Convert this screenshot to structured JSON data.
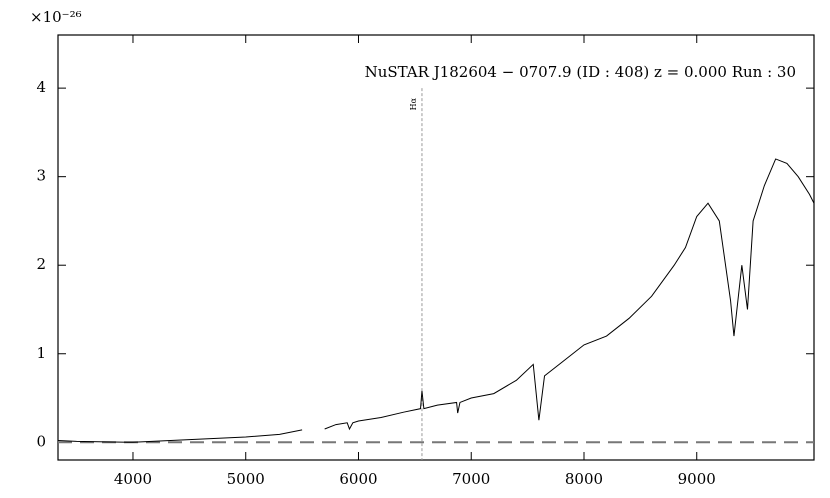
{
  "chart_data": {
    "type": "line",
    "title": "NuSTAR J182604 − 0707.9 (ID : 408)   z = 0.000   Run : 30",
    "y_offset_text": "×10⁻²⁶",
    "x": [
      3335,
      3500,
      4000,
      4500,
      5000,
      5300,
      5500,
      5600,
      5700,
      5800,
      5900,
      5920,
      5950,
      6000,
      6200,
      6400,
      6550,
      6563,
      6580,
      6700,
      6870,
      6880,
      6900,
      7000,
      7200,
      7400,
      7550,
      7600,
      7650,
      7800,
      8000,
      8200,
      8400,
      8600,
      8800,
      8900,
      9000,
      9100,
      9200,
      9300,
      9330,
      9400,
      9450,
      9500,
      9600,
      9700,
      9800,
      9900,
      10000,
      10040
    ],
    "values": [
      0.02,
      0.01,
      0.0,
      0.03,
      0.06,
      0.09,
      0.14,
      null,
      0.15,
      0.2,
      0.22,
      0.15,
      0.22,
      0.24,
      0.28,
      0.34,
      0.38,
      0.58,
      0.38,
      0.42,
      0.45,
      0.33,
      0.45,
      0.5,
      0.55,
      0.7,
      0.88,
      0.25,
      0.75,
      0.9,
      1.1,
      1.2,
      1.4,
      1.65,
      2.0,
      2.2,
      2.55,
      2.7,
      2.5,
      1.6,
      1.2,
      2.0,
      1.5,
      2.5,
      2.9,
      3.2,
      3.15,
      3.0,
      2.8,
      2.7
    ],
    "color": "#000000",
    "xlim": [
      3335,
      10040
    ],
    "xticks": [
      4000,
      5000,
      6000,
      7000,
      8000,
      9000
    ],
    "ylim": [
      -0.2,
      4.6
    ],
    "yticks": [
      0,
      1,
      2,
      3,
      4
    ],
    "hline": 0,
    "annotations": [
      {
        "text": "Hα",
        "x": 6563
      }
    ]
  }
}
